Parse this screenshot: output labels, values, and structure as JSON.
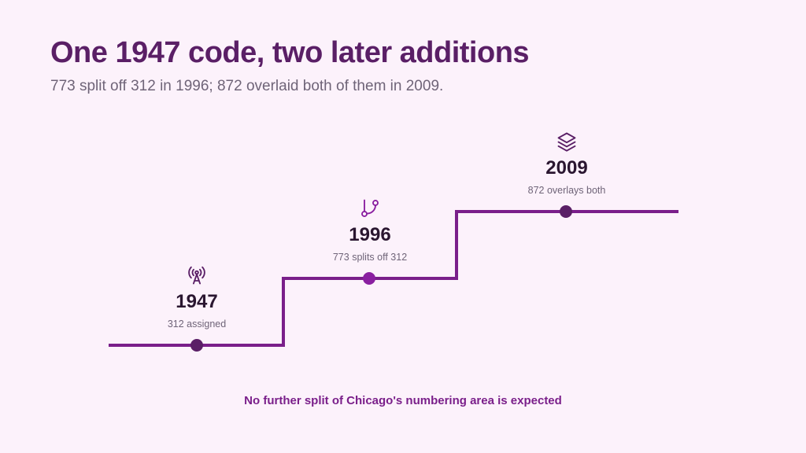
{
  "title": "One 1947 code, two later additions",
  "subtitle": "773 split off 312 in 1996; 872 overlaid both of them in 2009.",
  "colors": {
    "line": "#7a1f8a",
    "dot_dark": "#5a1f66",
    "dot_bright": "#8a1fa0",
    "title": "#5a1f66",
    "background": "#fcf2fb"
  },
  "milestones": [
    {
      "year": "1947",
      "description": "312 assigned",
      "icon": "broadcast-tower-icon"
    },
    {
      "year": "1996",
      "description": "773 splits off 312",
      "icon": "git-branch-icon"
    },
    {
      "year": "2009",
      "description": "872 overlays both",
      "icon": "layers-icon"
    }
  ],
  "footer": "No further split of Chicago's numbering area is expected"
}
